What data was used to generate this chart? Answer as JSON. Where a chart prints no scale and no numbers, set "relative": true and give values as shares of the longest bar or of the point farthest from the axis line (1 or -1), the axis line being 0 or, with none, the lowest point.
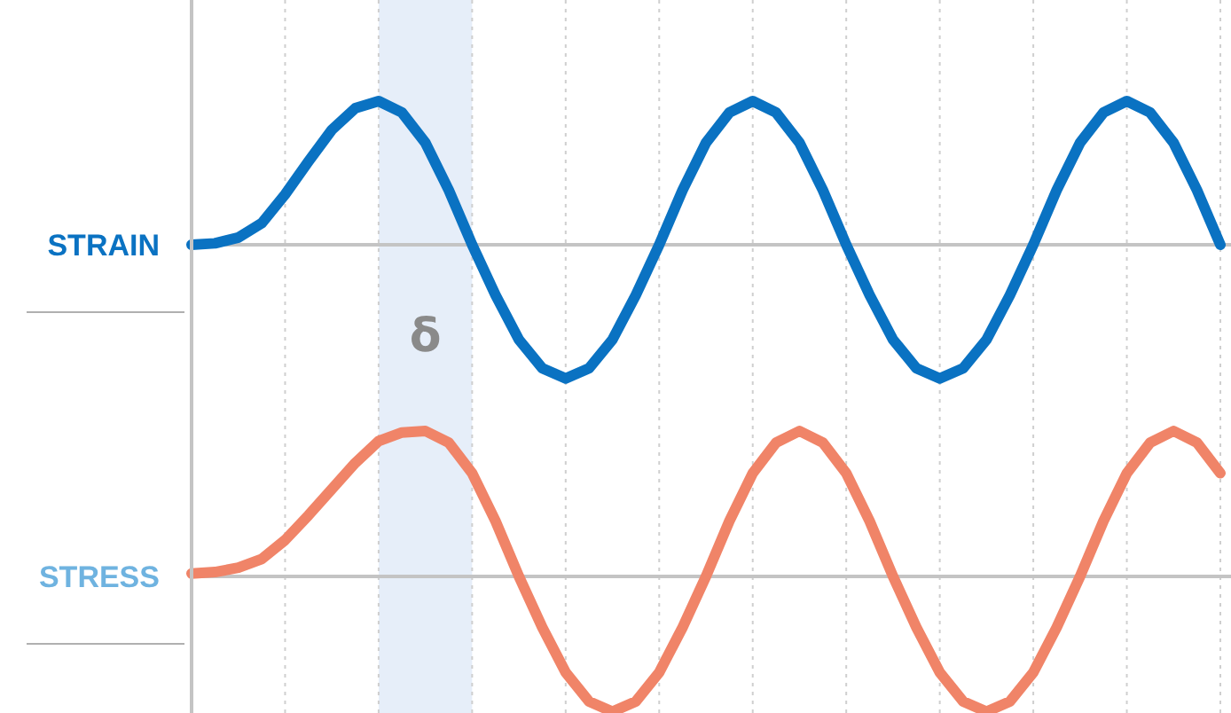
{
  "chart_data": [
    {
      "type": "line",
      "ylabel": "STRAIN",
      "relative": true,
      "categories": [
        null,
        null,
        null,
        null,
        null,
        null,
        null,
        null,
        null,
        null,
        null,
        null,
        null,
        null,
        null,
        null,
        null,
        null,
        null,
        null,
        null,
        null,
        null,
        null,
        null,
        null,
        null,
        null,
        null,
        null,
        null,
        null,
        null,
        null,
        null,
        null,
        null,
        null,
        null,
        null,
        null,
        null,
        null,
        null,
        null
      ],
      "grid": "x",
      "line_style": "solid",
      "annotations": [
        "δ"
      ],
      "series": [
        {
          "color": "#0a72c2",
          "values": [
            0,
            0.01,
            0.05,
            0.15,
            0.35,
            0.58,
            0.8,
            0.95,
            1,
            0.92,
            0.71,
            0.38,
            0,
            -0.35,
            -0.66,
            -0.86,
            -0.93,
            -0.86,
            -0.66,
            -0.35,
            0,
            0.38,
            0.71,
            0.92,
            1,
            0.92,
            0.71,
            0.38,
            0,
            -0.35,
            -0.66,
            -0.86,
            -0.93,
            -0.86,
            -0.66,
            -0.35,
            0,
            0.38,
            0.71,
            0.92,
            1,
            0.92,
            0.71,
            0.38,
            0
          ]
        }
      ]
    },
    {
      "type": "line",
      "ylabel": "STRESS",
      "relative": true,
      "categories": [
        null,
        null,
        null,
        null,
        null,
        null,
        null,
        null,
        null,
        null,
        null,
        null,
        null,
        null,
        null,
        null,
        null,
        null,
        null,
        null,
        null,
        null,
        null,
        null,
        null,
        null,
        null,
        null,
        null,
        null,
        null,
        null,
        null,
        null,
        null,
        null,
        null,
        null,
        null,
        null,
        null,
        null,
        null,
        null,
        null
      ],
      "grid": "x",
      "line_style": "solid",
      "series": [
        {
          "color": "#f08468",
          "values": [
            0.02,
            0.03,
            0.06,
            0.12,
            0.25,
            0.42,
            0.6,
            0.78,
            0.93,
            0.99,
            1,
            0.92,
            0.71,
            0.38,
            0,
            -0.35,
            -0.66,
            -0.86,
            -0.93,
            -0.86,
            -0.66,
            -0.35,
            0,
            0.38,
            0.71,
            0.92,
            1,
            0.92,
            0.71,
            0.38,
            0,
            -0.35,
            -0.66,
            -0.86,
            -0.93,
            -0.86,
            -0.66,
            -0.35,
            0,
            0.38,
            0.71,
            0.92,
            1,
            0.92,
            0.71
          ]
        }
      ]
    }
  ]
}
